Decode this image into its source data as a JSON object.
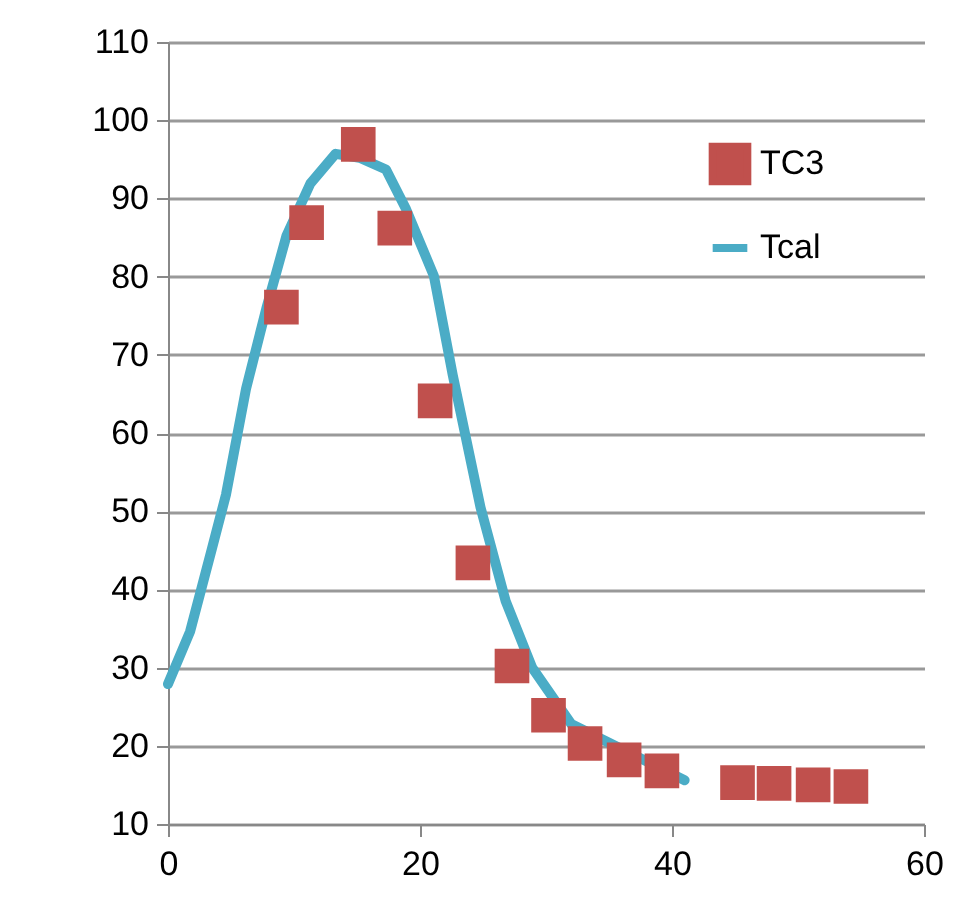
{
  "chart_data": {
    "type": "scatter",
    "xlim": [
      0,
      60
    ],
    "xticks": [
      0,
      20,
      40,
      60
    ],
    "ylim": [
      10,
      110
    ],
    "yticks": [
      10,
      20,
      30,
      40,
      50,
      60,
      70,
      80,
      90,
      100,
      110
    ],
    "grid": "y",
    "legend": "top right",
    "series": [
      {
        "name": "TC3",
        "marker": "square",
        "color": "#c0504d",
        "x": [
          9.0,
          11.0,
          15.1,
          18.0,
          21.2,
          24.2,
          27.3,
          30.2,
          33.1,
          36.2,
          39.2,
          45.2,
          48.1,
          51.2,
          54.2
        ],
        "values": [
          76.1,
          86.9,
          96.9,
          86.2,
          64.1,
          43.4,
          30.2,
          23.9,
          20.3,
          18.2,
          16.8,
          15.3,
          15.2,
          15.0,
          14.8
        ]
      },
      {
        "name": "Tcal",
        "type": "line",
        "marker": "none",
        "color": "#4bacc6",
        "x": [
          0,
          1.75,
          3.5,
          4.6,
          6.2,
          7.8,
          9.4,
          11.3,
          13.3,
          15.2,
          17.3,
          18.9,
          21.1,
          22.6,
          24.8,
          26.8,
          28.9,
          32.0,
          41.0
        ],
        "values": [
          27.9,
          34.6,
          45.3,
          52.1,
          65.7,
          75.9,
          85.2,
          91.9,
          95.7,
          95.2,
          93.7,
          88.6,
          80.1,
          67.4,
          50.5,
          38.5,
          30.0,
          22.8,
          15.6
        ]
      }
    ]
  }
}
